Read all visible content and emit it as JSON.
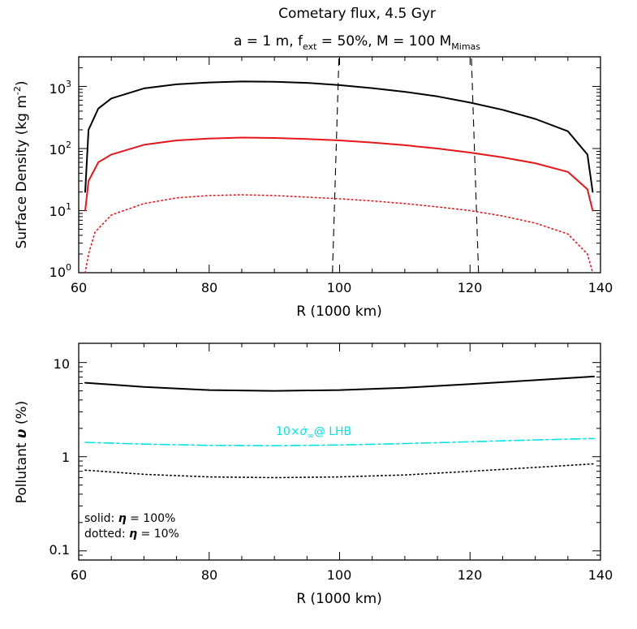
{
  "chart_data": [
    {
      "type": "line",
      "title": "Cometary flux, 4.5 Gyr",
      "subtitle_parts": {
        "a_part": "a = 1 m, f",
        "f_sub": "ext",
        "middle": " = 50%, M = 100 M",
        "m_sub": "Mimas"
      },
      "xlabel": "R (1000 km)",
      "ylabel": "Surface Density (kg m",
      "ylabel_sup": "-2",
      "ylabel_close": ")",
      "xlim": [
        60,
        140
      ],
      "ylim": [
        1,
        3000
      ],
      "yscale": "log",
      "x_ticks": [
        "60",
        "80",
        "100",
        "120",
        "140"
      ],
      "y_ticks": [
        {
          "base": "10",
          "exp": "0"
        },
        {
          "base": "10",
          "exp": "1"
        },
        {
          "base": "10",
          "exp": "2"
        },
        {
          "base": "10",
          "exp": "3"
        }
      ],
      "series": [
        {
          "name": "total surface density (solid black)",
          "color": "#000000",
          "style": "solid",
          "x": [
            61,
            61.5,
            63,
            65,
            70,
            75,
            80,
            85,
            90,
            95,
            100,
            105,
            110,
            115,
            120,
            125,
            130,
            135,
            138,
            138.8
          ],
          "values": [
            20,
            200,
            440,
            640,
            930,
            1080,
            1160,
            1200,
            1190,
            1140,
            1050,
            940,
            820,
            690,
            550,
            420,
            300,
            190,
            80,
            20
          ]
        },
        {
          "name": "surface density (solid red)",
          "color": "#e8161b",
          "style": "solid",
          "x": [
            61,
            61.5,
            63,
            65,
            70,
            75,
            80,
            85,
            90,
            95,
            100,
            105,
            110,
            115,
            120,
            125,
            130,
            135,
            138,
            138.8
          ],
          "values": [
            10,
            30,
            60,
            80,
            115,
            135,
            145,
            150,
            148,
            142,
            135,
            125,
            113,
            100,
            86,
            72,
            58,
            42,
            22,
            10
          ]
        },
        {
          "name": "surface density (dotted red)",
          "color": "#e8161b",
          "style": "dotted",
          "x": [
            61,
            61.5,
            62.5,
            65,
            70,
            75,
            80,
            85,
            90,
            95,
            100,
            105,
            110,
            115,
            120,
            125,
            130,
            135,
            138,
            138.8
          ],
          "values": [
            1,
            2,
            4.5,
            8.5,
            13,
            16,
            17.5,
            18,
            17.5,
            16.5,
            15.5,
            14.3,
            13,
            11.5,
            10,
            8.2,
            6.3,
            4.2,
            2,
            1
          ]
        },
        {
          "name": "dashed boundary 1",
          "color": "#000000",
          "style": "dashed",
          "x": [
            98.9,
            99.9
          ],
          "values": [
            1,
            3000
          ]
        },
        {
          "name": "dashed boundary 2",
          "color": "#000000",
          "style": "dashed",
          "x": [
            121.3,
            120.2
          ],
          "values": [
            1,
            3000
          ]
        }
      ]
    },
    {
      "type": "line",
      "xlabel": "R (1000 km)",
      "ylabel_prefix": "Pollutant ",
      "ylabel_symbol": "υ",
      "ylabel_suffix": " (%)",
      "xlim": [
        60,
        140
      ],
      "ylim": [
        0.08,
        16
      ],
      "yscale": "log",
      "x_ticks": [
        "60",
        "80",
        "100",
        "120",
        "140"
      ],
      "y_ticks": [
        {
          "value": 0.1,
          "label": "0.1"
        },
        {
          "value": 1,
          "label": "1"
        },
        {
          "value": 10,
          "label": "10"
        }
      ],
      "annotation": {
        "prefix": "10×",
        "symbol": "σ̇",
        "sub": "∞",
        "suffix": "@ LHB",
        "color": "#00e5e5"
      },
      "legend_text": {
        "solid_prefix": "solid: ",
        "solid_value": " = 100%",
        "dotted_prefix": "dotted: ",
        "dotted_value": " = 10%",
        "symbol": "η"
      },
      "series": [
        {
          "name": "η = 100% (solid)",
          "color": "#000000",
          "style": "solid",
          "x": [
            61,
            70,
            80,
            90,
            100,
            110,
            120,
            130,
            139
          ],
          "values": [
            6.1,
            5.5,
            5.1,
            5.0,
            5.1,
            5.4,
            5.9,
            6.5,
            7.1
          ]
        },
        {
          "name": "10×σ̇∞ @ LHB",
          "color": "#00e5e5",
          "style": "dashdot",
          "x": [
            61,
            70,
            80,
            90,
            100,
            110,
            120,
            130,
            139
          ],
          "values": [
            1.42,
            1.36,
            1.32,
            1.31,
            1.33,
            1.38,
            1.44,
            1.51,
            1.56
          ]
        },
        {
          "name": "η = 10% (dotted)",
          "color": "#000000",
          "style": "dotted",
          "x": [
            61,
            70,
            80,
            90,
            100,
            110,
            120,
            130,
            139
          ],
          "values": [
            0.72,
            0.65,
            0.61,
            0.6,
            0.61,
            0.64,
            0.7,
            0.77,
            0.84
          ]
        }
      ]
    }
  ]
}
